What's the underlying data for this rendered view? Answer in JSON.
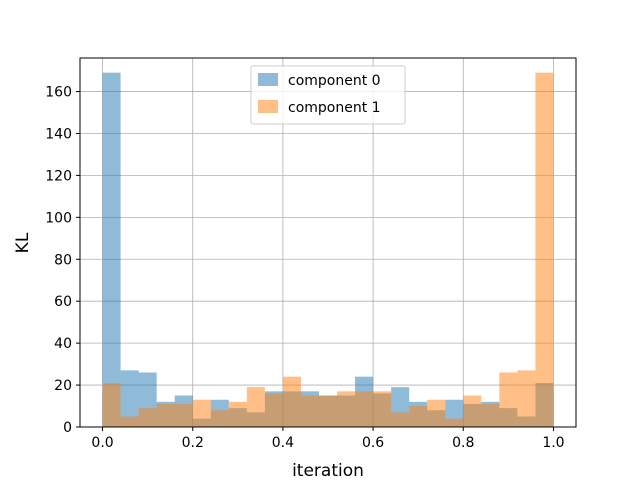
{
  "chart_data": {
    "type": "bar",
    "title": "",
    "xlabel": "iteration",
    "ylabel": "KL",
    "xlim": [
      -0.05,
      1.05
    ],
    "ylim": [
      0,
      176
    ],
    "xticks": [
      "0.0",
      "0.2",
      "0.4",
      "0.6",
      "0.8",
      "1.0"
    ],
    "yticks": [
      "0",
      "20",
      "40",
      "60",
      "80",
      "100",
      "120",
      "140",
      "160"
    ],
    "grid": true,
    "legend_position": "top-center",
    "bin_edges": [
      0.0,
      0.04,
      0.08,
      0.12,
      0.16,
      0.2,
      0.24,
      0.28,
      0.32,
      0.36,
      0.4,
      0.44,
      0.48,
      0.52,
      0.56,
      0.6,
      0.64,
      0.68,
      0.72,
      0.76,
      0.8,
      0.84,
      0.88,
      0.92,
      0.96,
      1.0
    ],
    "series": [
      {
        "name": "component 0",
        "color": "#1f77b4",
        "values": [
          169,
          27,
          26,
          12,
          15,
          4,
          13,
          9,
          7,
          17,
          17,
          17,
          15,
          15,
          24,
          16,
          19,
          12,
          8,
          13,
          11,
          12,
          9,
          5,
          21
        ]
      },
      {
        "name": "component 1",
        "color": "#ff7f0e",
        "values": [
          21,
          5,
          9,
          11,
          11,
          13,
          8,
          12,
          19,
          16,
          24,
          15,
          15,
          17,
          17,
          17,
          7,
          10,
          13,
          4,
          15,
          11,
          26,
          27,
          169
        ]
      }
    ]
  }
}
